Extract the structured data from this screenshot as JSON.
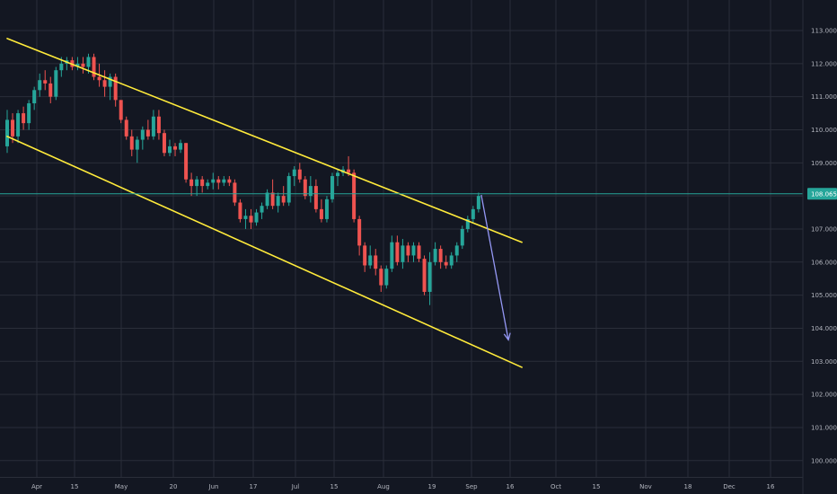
{
  "chart_data": {
    "type": "candlestick",
    "colors": {
      "background": "#131722",
      "grid": "#2a2e39",
      "up": "#26a69a",
      "down": "#ef5350",
      "channel": "#ffeb3b",
      "projection": "#9598f5",
      "last_price_line": "#26a69a",
      "axis_text": "#b2b5be"
    },
    "grid": true,
    "ylim": [
      99.5,
      113.4
    ],
    "y_ticks": [
      "100.000",
      "101.000",
      "102.000",
      "103.000",
      "104.000",
      "105.000",
      "106.000",
      "107.000",
      "108.000",
      "109.000",
      "110.000",
      "111.000",
      "112.000",
      "113.000"
    ],
    "x_ticks": [
      "Apr",
      "15",
      "May",
      "20",
      "Jun",
      "17",
      "Jul",
      "15",
      "Aug",
      "19",
      "Sep",
      "16",
      "Oct",
      "15",
      "Nov",
      "18",
      "Dec",
      "16"
    ],
    "last_price": 108.065,
    "last_price_label": "108.065",
    "candles": [
      [
        109.5,
        110.6,
        109.3,
        110.3
      ],
      [
        110.3,
        110.5,
        109.6,
        109.8
      ],
      [
        109.8,
        110.6,
        109.6,
        110.5
      ],
      [
        110.5,
        110.7,
        110.0,
        110.2
      ],
      [
        110.2,
        110.9,
        110.0,
        110.8
      ],
      [
        110.8,
        111.3,
        110.6,
        111.2
      ],
      [
        111.2,
        111.7,
        111.0,
        111.5
      ],
      [
        111.5,
        111.8,
        111.2,
        111.4
      ],
      [
        111.4,
        111.6,
        110.8,
        111.0
      ],
      [
        111.0,
        111.9,
        110.9,
        111.8
      ],
      [
        111.8,
        112.2,
        111.6,
        112.0
      ],
      [
        112.0,
        112.2,
        111.8,
        112.1
      ],
      [
        112.1,
        112.2,
        111.8,
        111.9
      ],
      [
        111.9,
        112.2,
        111.8,
        112.0
      ],
      [
        112.0,
        112.2,
        111.7,
        111.9
      ],
      [
        111.9,
        112.3,
        111.7,
        112.2
      ],
      [
        112.2,
        112.3,
        111.5,
        111.6
      ],
      [
        111.6,
        112.0,
        111.3,
        111.5
      ],
      [
        111.5,
        111.8,
        111.0,
        111.3
      ],
      [
        111.3,
        111.7,
        110.9,
        111.6
      ],
      [
        111.6,
        111.7,
        110.7,
        110.9
      ],
      [
        110.9,
        110.9,
        110.2,
        110.3
      ],
      [
        110.3,
        110.4,
        109.7,
        109.8
      ],
      [
        109.8,
        110.0,
        109.2,
        109.4
      ],
      [
        109.4,
        109.8,
        109.0,
        109.7
      ],
      [
        109.7,
        110.1,
        109.4,
        110.0
      ],
      [
        110.0,
        110.3,
        109.7,
        109.8
      ],
      [
        109.8,
        110.6,
        109.7,
        110.4
      ],
      [
        110.4,
        110.6,
        109.7,
        109.9
      ],
      [
        109.9,
        110.0,
        109.2,
        109.3
      ],
      [
        109.3,
        109.7,
        109.2,
        109.5
      ],
      [
        109.5,
        109.6,
        109.2,
        109.4
      ],
      [
        109.4,
        109.7,
        109.3,
        109.6
      ],
      [
        109.6,
        109.6,
        108.4,
        108.5
      ],
      [
        108.5,
        108.7,
        108.0,
        108.3
      ],
      [
        108.3,
        108.6,
        108.0,
        108.5
      ],
      [
        108.5,
        108.6,
        108.1,
        108.3
      ],
      [
        108.3,
        108.5,
        108.2,
        108.4
      ],
      [
        108.4,
        108.7,
        108.2,
        108.5
      ],
      [
        108.5,
        108.6,
        108.2,
        108.4
      ],
      [
        108.4,
        108.6,
        108.3,
        108.5
      ],
      [
        108.5,
        108.6,
        108.3,
        108.4
      ],
      [
        108.4,
        108.5,
        107.7,
        107.8
      ],
      [
        107.8,
        107.9,
        107.2,
        107.3
      ],
      [
        107.3,
        107.6,
        107.0,
        107.4
      ],
      [
        107.4,
        107.6,
        107.0,
        107.2
      ],
      [
        107.2,
        107.6,
        107.1,
        107.5
      ],
      [
        107.5,
        107.8,
        107.3,
        107.7
      ],
      [
        107.7,
        108.2,
        107.6,
        108.1
      ],
      [
        108.1,
        108.5,
        107.6,
        107.7
      ],
      [
        107.7,
        108.1,
        107.5,
        108.0
      ],
      [
        108.0,
        108.3,
        107.7,
        107.8
      ],
      [
        107.8,
        108.7,
        107.7,
        108.6
      ],
      [
        108.6,
        108.9,
        108.3,
        108.8
      ],
      [
        108.8,
        109.0,
        108.4,
        108.5
      ],
      [
        108.5,
        108.6,
        107.9,
        108.0
      ],
      [
        108.0,
        108.6,
        107.8,
        108.3
      ],
      [
        108.3,
        108.5,
        107.5,
        107.6
      ],
      [
        107.6,
        107.9,
        107.2,
        107.3
      ],
      [
        107.3,
        108.0,
        107.2,
        107.9
      ],
      [
        107.9,
        108.7,
        107.8,
        108.6
      ],
      [
        108.6,
        108.8,
        108.3,
        108.7
      ],
      [
        108.7,
        108.9,
        108.6,
        108.8
      ],
      [
        108.8,
        109.2,
        108.6,
        108.7
      ],
      [
        108.7,
        108.8,
        107.2,
        107.3
      ],
      [
        107.3,
        107.4,
        106.2,
        106.5
      ],
      [
        106.5,
        106.6,
        105.7,
        105.9
      ],
      [
        105.9,
        106.5,
        105.8,
        106.2
      ],
      [
        106.2,
        106.4,
        105.6,
        105.8
      ],
      [
        105.8,
        105.9,
        105.1,
        105.3
      ],
      [
        105.3,
        105.9,
        105.2,
        105.8
      ],
      [
        105.8,
        106.8,
        105.7,
        106.6
      ],
      [
        106.6,
        106.8,
        105.9,
        106.0
      ],
      [
        106.0,
        106.7,
        105.8,
        106.5
      ],
      [
        106.5,
        106.6,
        106.0,
        106.2
      ],
      [
        106.2,
        106.6,
        106.0,
        106.5
      ],
      [
        106.5,
        106.6,
        106.0,
        106.1
      ],
      [
        106.1,
        106.2,
        105.0,
        105.1
      ],
      [
        105.1,
        106.3,
        104.7,
        106.0
      ],
      [
        106.0,
        106.6,
        105.9,
        106.4
      ],
      [
        106.4,
        106.5,
        105.8,
        106.0
      ],
      [
        106.0,
        106.2,
        105.8,
        105.9
      ],
      [
        105.9,
        106.3,
        105.8,
        106.2
      ],
      [
        106.2,
        106.6,
        106.0,
        106.5
      ],
      [
        106.5,
        107.1,
        106.4,
        107.0
      ],
      [
        107.0,
        107.4,
        106.9,
        107.3
      ],
      [
        107.3,
        107.7,
        107.2,
        107.6
      ],
      [
        107.6,
        108.1,
        107.5,
        108.0
      ]
    ],
    "channel_upper": [
      [
        0,
        112.76
      ],
      [
        95,
        106.6
      ]
    ],
    "channel_lower": [
      [
        0,
        109.8
      ],
      [
        95,
        102.82
      ]
    ],
    "projection": [
      [
        87.5,
        108.03
      ],
      [
        92.5,
        103.65
      ]
    ]
  }
}
